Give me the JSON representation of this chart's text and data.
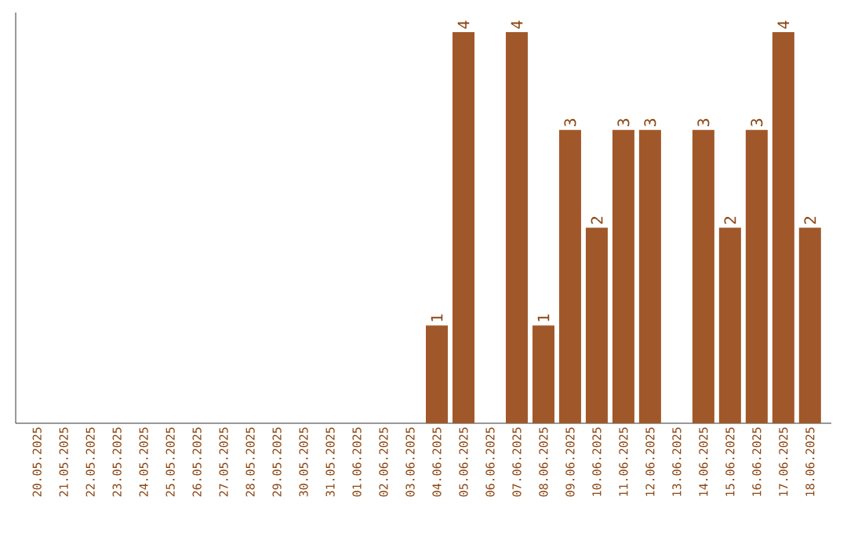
{
  "chart_data": {
    "type": "bar",
    "categories": [
      "20.05.2025",
      "21.05.2025",
      "22.05.2025",
      "23.05.2025",
      "24.05.2025",
      "25.05.2025",
      "26.05.2025",
      "27.05.2025",
      "28.05.2025",
      "29.05.2025",
      "30.05.2025",
      "31.05.2025",
      "01.06.2025",
      "02.06.2025",
      "03.06.2025",
      "04.06.2025",
      "05.06.2025",
      "06.06.2025",
      "07.06.2025",
      "08.06.2025",
      "09.06.2025",
      "10.06.2025",
      "11.06.2025",
      "12.06.2025",
      "13.06.2025",
      "14.06.2025",
      "15.06.2025",
      "16.06.2025",
      "17.06.2025",
      "18.06.2025"
    ],
    "values": [
      null,
      null,
      null,
      null,
      null,
      null,
      null,
      null,
      null,
      null,
      null,
      null,
      null,
      null,
      null,
      1,
      4,
      null,
      4,
      1,
      3,
      2,
      3,
      3,
      null,
      3,
      2,
      3,
      4,
      2
    ],
    "data_labels": true,
    "color": "#a0582a",
    "ylim": [
      0,
      4.2
    ],
    "tick_labels": "x"
  }
}
